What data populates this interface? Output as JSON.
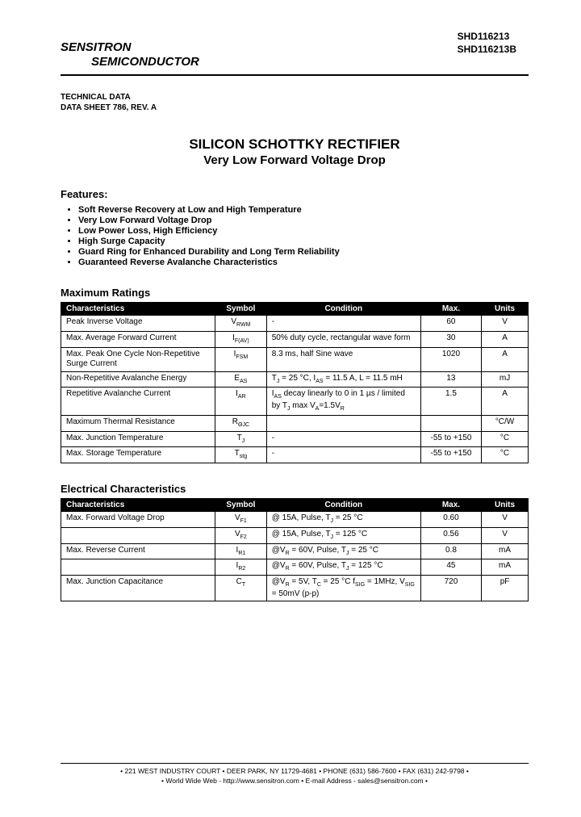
{
  "header": {
    "company_line1": "SENSITRON",
    "company_line2": "SEMICONDUCTOR",
    "part_number_1": "SHD116213",
    "part_number_2": "SHD116213B"
  },
  "tech": {
    "line1": "TECHNICAL DATA",
    "line2": "DATA SHEET 786, REV. A"
  },
  "title": "SILICON SCHOTTKY RECTIFIER",
  "subtitle": "Very Low Forward Voltage Drop",
  "features": {
    "heading": "Features:",
    "items": [
      "Soft Reverse Recovery at Low and High Temperature",
      "Very Low Forward Voltage Drop",
      "Low Power Loss, High Efficiency",
      "High Surge Capacity",
      "Guard Ring for Enhanced Durability and Long Term Reliability",
      "Guaranteed Reverse Avalanche Characteristics"
    ]
  },
  "max_ratings": {
    "heading": "Maximum Ratings",
    "columns": [
      "Characteristics",
      "Symbol",
      "Condition",
      "Max.",
      "Units"
    ],
    "rows": [
      {
        "char": "Peak Inverse Voltage",
        "sym": "V<sub>RWM</sub>",
        "cond": "-",
        "max": "60",
        "units": "V"
      },
      {
        "char": "Max. Average Forward Current",
        "sym": "I<sub>F(AV)</sub>",
        "cond": "50% duty cycle, rectangular wave form",
        "max": "30",
        "units": "A"
      },
      {
        "char": "Max. Peak One Cycle Non-Repetitive Surge Current",
        "sym": "I<sub>FSM</sub>",
        "cond": "8.3 ms, half Sine wave",
        "max": "1020",
        "units": "A"
      },
      {
        "char": "Non-Repetitive Avalanche Energy",
        "sym": "E<sub>AS</sub>",
        "cond": "T<sub>J</sub> = 25 °C, I<sub>AS</sub> = 11.5 A, L = 11.5 mH",
        "max": "13",
        "units": "mJ"
      },
      {
        "char": "Repetitive Avalanche Current",
        "sym": "I<sub>AR</sub>",
        "cond": "I<sub>AS</sub> decay linearly to 0 in 1 µs / limited by T<sub>J</sub> max V<sub>A</sub>=1.5V<sub>R</sub>",
        "max": "1.5",
        "units": "A"
      },
      {
        "char": "Maximum Thermal Resistance",
        "sym": "R<sub>ΘJC</sub>",
        "cond": "",
        "max": "",
        "units": "°C/W"
      },
      {
        "char": "Max. Junction Temperature",
        "sym": "T<sub>J</sub>",
        "cond": "-",
        "max": "-55 to +150",
        "units": "°C"
      },
      {
        "char": "Max. Storage Temperature",
        "sym": "T<sub>stg</sub>",
        "cond": "-",
        "max": "-55 to +150",
        "units": "°C"
      }
    ]
  },
  "elec_char": {
    "heading": "Electrical Characteristics",
    "columns": [
      "Characteristics",
      "Symbol",
      "Condition",
      "Max.",
      "Units"
    ],
    "rows": [
      {
        "char": "Max. Forward Voltage Drop",
        "sym": "V<sub>F1</sub>",
        "cond": "@ 15A, Pulse, T<sub>J</sub> = 25 °C",
        "max": "0.60",
        "units": "V"
      },
      {
        "char": "",
        "sym": "V<sub>F2</sub>",
        "cond": "@ 15A, Pulse, T<sub>J</sub> = 125 °C",
        "max": "0.56",
        "units": "V"
      },
      {
        "char": "Max. Reverse Current",
        "sym": "I<sub>R1</sub>",
        "cond": "@V<sub>R</sub> = 60V, Pulse, T<sub>J</sub> = 25 °C",
        "max": "0.8",
        "units": "mA"
      },
      {
        "char": "",
        "sym": "I<sub>R2</sub>",
        "cond": "@V<sub>R</sub> = 60V, Pulse, T<sub>J</sub> = 125 °C",
        "max": "45",
        "units": "mA"
      },
      {
        "char": "Max. Junction Capacitance",
        "sym": "C<sub>T</sub>",
        "cond": "@V<sub>R</sub> = 5V, T<sub>C</sub> = 25 °C f<sub>SIG</sub> = 1MHz, V<sub>SIG</sub> = 50mV (p-p)",
        "max": "720",
        "units": "pF"
      }
    ]
  },
  "footer": {
    "line1": "• 221 WEST INDUSTRY COURT • DEER PARK, NY 11729-4681 • PHONE (631) 586-7600 • FAX (631) 242-9798 •",
    "line2": "• World Wide Web - http://www.sensitron.com • E-mail Address - sales@sensitron.com •"
  }
}
